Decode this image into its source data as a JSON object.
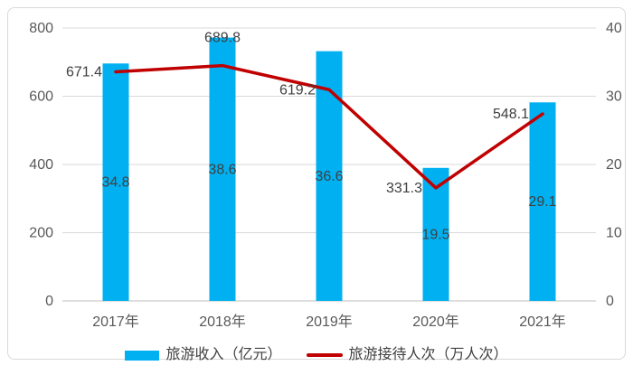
{
  "chart_data": {
    "type": "combo-bar-line",
    "title": "",
    "categories": [
      "2017年",
      "2018年",
      "2019年",
      "2020年",
      "2021年"
    ],
    "series": [
      {
        "name": "旅游收入（亿元）",
        "type": "bar",
        "axis": "right",
        "color": "#00b0f0",
        "values": [
          34.8,
          38.6,
          36.6,
          19.5,
          29.1
        ],
        "labels": [
          "34.8",
          "38.6",
          "36.6",
          "19.5",
          "29.1"
        ],
        "label_position": "center-of-bar"
      },
      {
        "name": "旅游接待人次（万人次）",
        "type": "line",
        "axis": "left",
        "color": "#c00000",
        "values": [
          671.4,
          689.8,
          619.2,
          331.3,
          548.1
        ],
        "labels": [
          "671.4",
          "689.8",
          "619.2",
          "331.3",
          "548.1"
        ],
        "label_side": [
          "left",
          "above",
          "left",
          "left",
          "left"
        ]
      }
    ],
    "left_axis": {
      "min": 0,
      "max": 800,
      "ticks": [
        0,
        200,
        400,
        600,
        800
      ]
    },
    "right_axis": {
      "min": 0,
      "max": 40,
      "ticks": [
        0,
        10,
        20,
        30,
        40
      ]
    },
    "grid": true,
    "legend_position": "bottom",
    "colors": {
      "gridline": "#d9d9d9",
      "axis_line": "#bfbfbf",
      "tick_text": "#595959",
      "data_label_text": "#404040",
      "card_border": "#d9d9d9",
      "background": "#ffffff"
    }
  }
}
